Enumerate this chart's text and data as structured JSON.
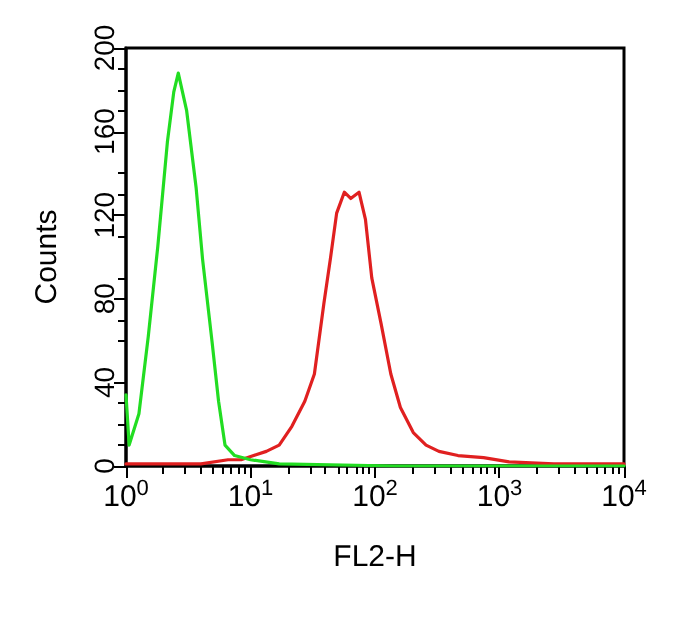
{
  "chart_data": {
    "type": "line",
    "xlabel": "FL2-H",
    "ylabel": "Counts",
    "log": "x",
    "marker": "none",
    "line_style": "solid",
    "xlim": [
      1,
      10000
    ],
    "xticks": [
      {
        "value": 1,
        "label": "10$^{0}$"
      },
      {
        "value": 10,
        "label": "10$^{1}$"
      },
      {
        "value": 100,
        "label": "10$^{2}$"
      },
      {
        "value": 1000,
        "label": "10$^{3}$"
      },
      {
        "value": 10000,
        "label": "10$^{4}$"
      }
    ],
    "ylim": [
      0,
      200
    ],
    "yticks": [
      0,
      40,
      80,
      120,
      160,
      200
    ],
    "series": [
      {
        "color": "#e02020",
        "x": [
          1,
          2,
          4,
          6.6,
          8.4,
          10.6,
          13.4,
          17,
          21.5,
          27.3,
          32.6,
          38.9,
          43.8,
          49.2,
          56.7,
          63.8,
          74.4,
          83.8,
          94.2,
          112,
          134,
          160,
          203,
          257,
          326,
          464,
          745,
          1194,
          2729,
          10000
        ],
        "values": [
          1,
          1,
          1,
          3,
          3,
          5,
          7,
          10,
          19,
          31,
          44,
          78,
          99,
          121,
          131,
          128,
          131,
          118,
          90,
          68,
          44,
          28,
          16,
          10,
          7,
          5,
          4,
          2,
          1,
          1
        ]
      },
      {
        "color": "#22dd22",
        "x": [
          1,
          1.06,
          1.27,
          1.51,
          1.8,
          2.15,
          2.42,
          2.63,
          3.07,
          3.66,
          4.12,
          4.92,
          5.54,
          6.24,
          7.45,
          10,
          17,
          142,
          10000
        ],
        "values": [
          34,
          10,
          25,
          62,
          105,
          155,
          179,
          188,
          170,
          133,
          99,
          59,
          31,
          10,
          5,
          3,
          1,
          0,
          0
        ]
      }
    ]
  }
}
